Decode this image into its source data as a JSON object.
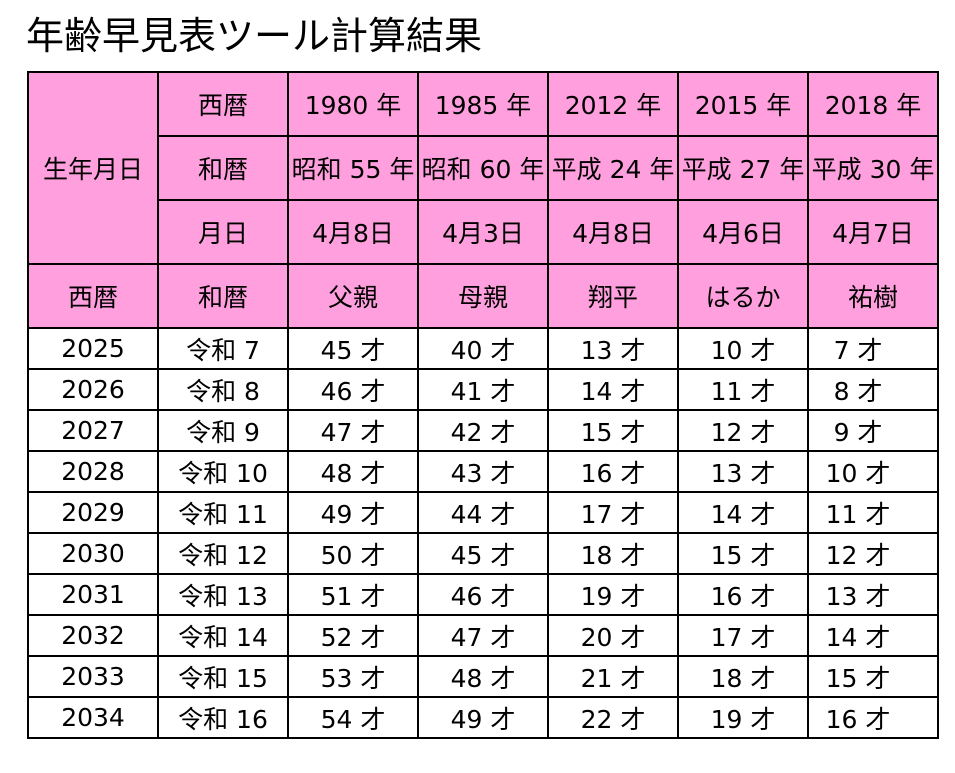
{
  "title": "年齢早見表ツール計算結果",
  "header": {
    "birth_label": "生年月日",
    "row_labels": {
      "seireki": "西暦",
      "wareki": "和暦",
      "gappi": "月日"
    },
    "people": [
      {
        "seireki": "1980 年",
        "wareki": "昭和 55 年",
        "gappi": "4月8日",
        "name": "父親"
      },
      {
        "seireki": "1985 年",
        "wareki": "昭和 60 年",
        "gappi": "4月3日",
        "name": "母親"
      },
      {
        "seireki": "2012 年",
        "wareki": "平成 24 年",
        "gappi": "4月8日",
        "name": "翔平"
      },
      {
        "seireki": "2015 年",
        "wareki": "平成 27 年",
        "gappi": "4月6日",
        "name": "はるか"
      },
      {
        "seireki": "2018 年",
        "wareki": "平成 30 年",
        "gappi": "4月7日",
        "name": "祐樹"
      }
    ],
    "col_seireki": "西暦",
    "col_wareki": "和暦"
  },
  "rows": [
    {
      "year": "2025",
      "era": "令和 7",
      "ages": [
        "45 才",
        "40 才",
        "13 才",
        "10 才",
        "7 才"
      ]
    },
    {
      "year": "2026",
      "era": "令和 8",
      "ages": [
        "46 才",
        "41 才",
        "14 才",
        "11 才",
        "8 才"
      ]
    },
    {
      "year": "2027",
      "era": "令和 9",
      "ages": [
        "47 才",
        "42 才",
        "15 才",
        "12 才",
        "9 才"
      ]
    },
    {
      "year": "2028",
      "era": "令和 10",
      "ages": [
        "48 才",
        "43 才",
        "16 才",
        "13 才",
        "10 才"
      ]
    },
    {
      "year": "2029",
      "era": "令和 11",
      "ages": [
        "49 才",
        "44 才",
        "17 才",
        "14 才",
        "11 才"
      ]
    },
    {
      "year": "2030",
      "era": "令和 12",
      "ages": [
        "50 才",
        "45 才",
        "18 才",
        "15 才",
        "12 才"
      ]
    },
    {
      "year": "2031",
      "era": "令和 13",
      "ages": [
        "51 才",
        "46 才",
        "19 才",
        "16 才",
        "13 才"
      ]
    },
    {
      "year": "2032",
      "era": "令和 14",
      "ages": [
        "52 才",
        "47 才",
        "20 才",
        "17 才",
        "14 才"
      ]
    },
    {
      "year": "2033",
      "era": "令和 15",
      "ages": [
        "53 才",
        "48 才",
        "21 才",
        "18 才",
        "15 才"
      ]
    },
    {
      "year": "2034",
      "era": "令和 16",
      "ages": [
        "54 才",
        "49 才",
        "22 才",
        "19 才",
        "16 才"
      ]
    }
  ],
  "colors": {
    "header_bg": "#ff9fde",
    "border": "#000000"
  }
}
